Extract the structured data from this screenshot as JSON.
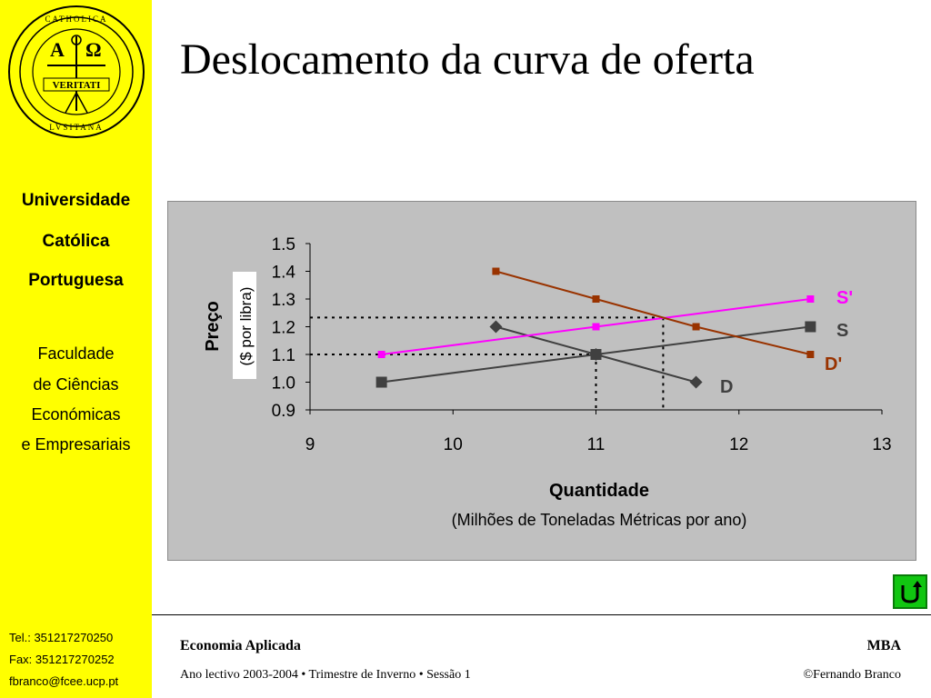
{
  "slide": {
    "title": "Deslocamento da curva de oferta"
  },
  "sidebar": {
    "university_lines": [
      "Universidade",
      "Católica",
      "Portuguesa"
    ],
    "faculty_lines": [
      "Faculdade",
      "de Ciências",
      "Económicas",
      "e Empresariais"
    ],
    "contact": {
      "tel": "Tel.: 351217270250",
      "fax": "Fax: 351217270252",
      "email": "fbranco@fcee.ucp.pt"
    }
  },
  "footer": {
    "course": "Economia Aplicada",
    "program": "MBA",
    "session": "Ano lectivo 2003-2004 • Trimestre de Inverno • Sessão 1",
    "author": "©Fernando Branco"
  },
  "colors": {
    "sidebar": "#ffff00",
    "plot_bg": "#c0c0c0",
    "S": "#404040",
    "D": "#404040",
    "S_prime": "#ff00ff",
    "D_prime": "#993300",
    "back_button": "#11c611"
  },
  "chart_data": {
    "type": "line",
    "xlabel": "Quantidade",
    "xlabel_sub": "(Milhões de Toneladas Métricas por ano)",
    "ylabel": "Preço",
    "ylabel_sub": "($ por libra)",
    "xlim": [
      9,
      13
    ],
    "ylim": [
      0.9,
      1.5
    ],
    "x_ticks": [
      "9",
      "10",
      "11",
      "12",
      "13"
    ],
    "y_ticks": [
      "0.9",
      "1.0",
      "1.1",
      "1.2",
      "1.3",
      "1.4",
      "1.5"
    ],
    "grid": false,
    "series": [
      {
        "name": "S",
        "color": "#404040",
        "marker": "square",
        "points": [
          [
            9.5,
            1.0
          ],
          [
            11.0,
            1.1
          ],
          [
            12.5,
            1.2
          ]
        ]
      },
      {
        "name": "D",
        "color": "#404040",
        "marker": "diamond",
        "points": [
          [
            10.3,
            1.2
          ],
          [
            11.0,
            1.1
          ],
          [
            11.7,
            1.0
          ]
        ]
      },
      {
        "name": "S'",
        "color": "#ff00ff",
        "marker": "square-small",
        "points": [
          [
            9.5,
            1.1
          ],
          [
            11.0,
            1.2
          ],
          [
            12.5,
            1.3
          ]
        ]
      },
      {
        "name": "D'",
        "color": "#993300",
        "marker": "square-small",
        "points": [
          [
            10.3,
            1.4
          ],
          [
            11.0,
            1.3
          ],
          [
            11.7,
            1.2
          ],
          [
            12.5,
            1.1
          ]
        ]
      }
    ],
    "reference_lines": [
      {
        "from": [
          9,
          1.1
        ],
        "to": [
          11.0,
          1.1
        ]
      },
      {
        "from": [
          11.0,
          1.1
        ],
        "to": [
          11.0,
          0.9
        ]
      },
      {
        "from": [
          9,
          1.233
        ],
        "to": [
          11.47,
          1.233
        ]
      },
      {
        "from": [
          11.47,
          1.233
        ],
        "to": [
          11.47,
          0.9
        ]
      }
    ]
  }
}
